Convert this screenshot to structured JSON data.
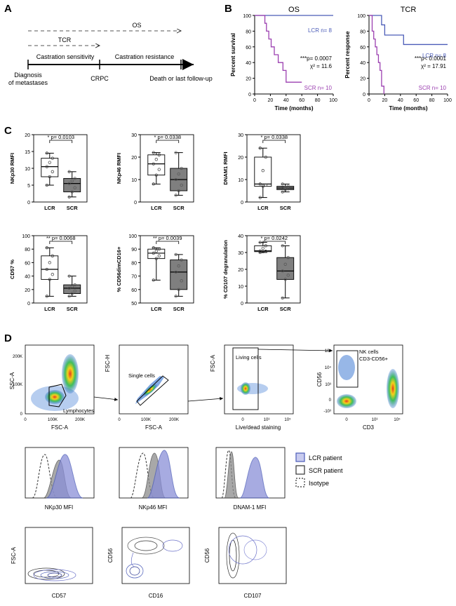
{
  "panels": {
    "a": "A",
    "b": "B",
    "c": "C",
    "d": "D"
  },
  "timeline": {
    "os_label": "OS",
    "tcr_label": "TCR",
    "phase1": "Castration sensitivity",
    "phase2": "Castration resistance",
    "start_l1": "Diagnosis",
    "start_l2": "of metastases",
    "crpc": "CRPC",
    "end": "Death or last follow-up"
  },
  "colors": {
    "lcr": "#4b5cb8",
    "scr": "#9b3fb0",
    "box_lcr": "#ffffff",
    "box_scr": "#7f7f7f",
    "iso": "#333333"
  },
  "chart_data": [
    {
      "type": "line",
      "title": "OS",
      "ylabel": "Percent survival",
      "xlabel": "Time (months)",
      "xlim": [
        0,
        100
      ],
      "ylim": [
        0,
        100
      ],
      "xticks": [
        "0",
        "20",
        "40",
        "60",
        "80",
        "100"
      ],
      "yticks": [
        "0",
        "20",
        "40",
        "60",
        "80",
        "100"
      ],
      "series": [
        {
          "name": "LCR n= 8",
          "x": [
            0,
            100
          ],
          "y": [
            100,
            100
          ]
        },
        {
          "name": "SCR n= 10",
          "x": [
            0,
            13,
            15,
            18,
            21,
            25,
            30,
            36,
            40,
            60
          ],
          "y": [
            100,
            90,
            80,
            70,
            60,
            50,
            40,
            30,
            15,
            15
          ]
        }
      ],
      "stat_p": "***p= 0.0007",
      "stat_chi": "χ² = 11.6"
    },
    {
      "type": "line",
      "title": "TCR",
      "ylabel": "Percent response",
      "xlabel": "Time (months)",
      "xlim": [
        0,
        100
      ],
      "ylim": [
        0,
        100
      ],
      "xticks": [
        "0",
        "20",
        "40",
        "60",
        "80",
        "100"
      ],
      "yticks": [
        "0",
        "20",
        "40",
        "60",
        "80",
        "100"
      ],
      "series": [
        {
          "name": "LCR n= 8",
          "x": [
            0,
            16,
            20,
            44,
            100
          ],
          "y": [
            100,
            88,
            75,
            63,
            63
          ]
        },
        {
          "name": "SCR n= 10",
          "x": [
            0,
            4,
            6,
            8,
            10,
            12,
            14,
            16,
            19
          ],
          "y": [
            100,
            80,
            70,
            60,
            50,
            40,
            30,
            10,
            0
          ]
        }
      ],
      "stat_p": "***p< 0.0001",
      "stat_chi": "χ² = 17.91"
    },
    {
      "type": "box",
      "ylabel": "NKp30 RMFI",
      "pvalue": "* p= 0.0103",
      "categories": [
        "LCR",
        "SCR"
      ],
      "ylim": [
        0,
        20
      ],
      "yticks": [
        "0",
        "5",
        "10",
        "15",
        "20"
      ],
      "boxes": [
        {
          "min": 5,
          "q1": 7.5,
          "median": 10.5,
          "q3": 13,
          "max": 14.5
        },
        {
          "min": 1.5,
          "q1": 3,
          "median": 5.5,
          "q3": 7,
          "max": 9
        }
      ]
    },
    {
      "type": "box",
      "ylabel": "NKp46 RMFI",
      "pvalue": "* p= 0.0338",
      "categories": [
        "LCR",
        "SCR"
      ],
      "ylim": [
        0,
        30
      ],
      "yticks": [
        "0",
        "10",
        "20",
        "30"
      ],
      "boxes": [
        {
          "min": 8,
          "q1": 12,
          "median": 17,
          "q3": 21,
          "max": 22
        },
        {
          "min": 3,
          "q1": 5,
          "median": 10,
          "q3": 15,
          "max": 22
        }
      ]
    },
    {
      "type": "box",
      "ylabel": "DNAM1 RMFI",
      "pvalue": "* p= 0.0338",
      "categories": [
        "LCR",
        "SCR"
      ],
      "ylim": [
        0,
        30
      ],
      "yticks": [
        "0",
        "10",
        "20",
        "30"
      ],
      "boxes": [
        {
          "min": 2,
          "q1": 7,
          "median": 8,
          "q3": 20,
          "max": 24
        },
        {
          "min": 4.5,
          "q1": 5.5,
          "median": 6.2,
          "q3": 7,
          "max": 8
        }
      ]
    },
    {
      "type": "box",
      "ylabel": "CD57 %",
      "pvalue": "** p= 0.0068",
      "categories": [
        "LCR",
        "SCR"
      ],
      "ylim": [
        0,
        100
      ],
      "yticks": [
        "0",
        "20",
        "40",
        "60",
        "80",
        "100"
      ],
      "boxes": [
        {
          "min": 10,
          "q1": 35,
          "median": 50,
          "q3": 70,
          "max": 82
        },
        {
          "min": 10,
          "q1": 14,
          "median": 22,
          "q3": 27,
          "max": 40
        }
      ]
    },
    {
      "type": "box",
      "ylabel": "% CD56dimCD16+",
      "pvalue": "** p= 0.0039",
      "categories": [
        "LCR",
        "SCR"
      ],
      "ylim": [
        50,
        100
      ],
      "yticks": [
        "50",
        "60",
        "70",
        "80",
        "90",
        "100"
      ],
      "boxes": [
        {
          "min": 67,
          "q1": 83,
          "median": 87,
          "q3": 90,
          "max": 91
        },
        {
          "min": 55,
          "q1": 60,
          "median": 73,
          "q3": 82,
          "max": 86
        }
      ]
    },
    {
      "type": "box",
      "ylabel": "% CD107 degranulation",
      "pvalue": "* p= 0.0242",
      "categories": [
        "LCR",
        "SCR"
      ],
      "ylim": [
        0,
        40
      ],
      "yticks": [
        "0",
        "10",
        "20",
        "30",
        "40"
      ],
      "boxes": [
        {
          "min": 30,
          "q1": 30.5,
          "median": 31,
          "q3": 34,
          "max": 36
        },
        {
          "min": 3,
          "q1": 14,
          "median": 19,
          "q3": 27,
          "max": 34
        }
      ]
    }
  ],
  "flow": {
    "p1": {
      "y": "SSC-A",
      "x": "FSC-A",
      "gate": "Lymphocytes",
      "xt": [
        "0",
        "100K",
        "200K"
      ],
      "yt": [
        "0",
        "100K",
        "200K"
      ]
    },
    "p2": {
      "y": "FSC-H",
      "x": "FSC-A",
      "gate": "Single cells",
      "xt": [
        "0",
        "100K",
        "200K"
      ]
    },
    "p3": {
      "y": "FSC-A",
      "x": "Live/dead staining",
      "gate": "Living cells",
      "xt": [
        "0",
        "10³",
        "10⁵"
      ]
    },
    "p4": {
      "y": "CD56",
      "x": "CD3",
      "gate1": "NK cells",
      "gate2": "CD3-CD56+",
      "xt": [
        "0",
        "10³",
        "10⁵"
      ],
      "yt": [
        "10⁵",
        "10⁴",
        "10³",
        "0",
        "-10³"
      ]
    }
  },
  "histos": [
    {
      "x": "NKp30 MFI"
    },
    {
      "x": "NKp46 MFI"
    },
    {
      "x": "DNAM-1 MFI"
    }
  ],
  "contours": [
    {
      "y": "FSC-A",
      "x": "CD57"
    },
    {
      "y": "CD56",
      "x": "CD16"
    },
    {
      "y": "CD56",
      "x": "CD107"
    }
  ],
  "legend": [
    "LCR patient",
    "SCR patient",
    "Isotype"
  ]
}
